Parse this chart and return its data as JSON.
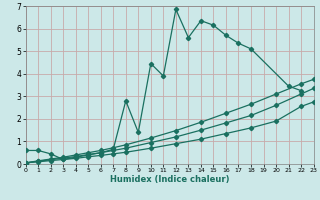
{
  "xlabel": "Humidex (Indice chaleur)",
  "xlim": [
    0,
    23
  ],
  "ylim": [
    0,
    7
  ],
  "bg_color": "#cce8e8",
  "grid_color": "#c8aaaa",
  "line_color": "#1a7060",
  "curve1_x": [
    0,
    1,
    2,
    3,
    4,
    5,
    6,
    7,
    8,
    9,
    10,
    11,
    12,
    13,
    14,
    15,
    16,
    17,
    18,
    21,
    22
  ],
  "curve1_y": [
    0.6,
    0.6,
    0.45,
    0.2,
    0.3,
    0.4,
    0.5,
    0.65,
    2.8,
    1.4,
    4.45,
    3.9,
    6.85,
    5.6,
    6.35,
    6.15,
    5.7,
    5.35,
    5.1,
    3.45,
    3.25
  ],
  "line2_x": [
    0,
    1,
    2,
    3,
    4,
    5,
    6,
    7,
    8,
    10,
    12,
    14,
    16,
    18,
    20,
    22,
    23
  ],
  "line2_y": [
    0.05,
    0.1,
    0.15,
    0.2,
    0.25,
    0.32,
    0.38,
    0.45,
    0.52,
    0.7,
    0.9,
    1.1,
    1.35,
    1.6,
    1.9,
    2.55,
    2.75
  ],
  "line3_x": [
    0,
    1,
    2,
    3,
    4,
    5,
    6,
    7,
    8,
    10,
    12,
    14,
    16,
    18,
    20,
    22,
    23
  ],
  "line3_y": [
    0.05,
    0.12,
    0.19,
    0.26,
    0.33,
    0.42,
    0.5,
    0.6,
    0.7,
    0.95,
    1.2,
    1.5,
    1.82,
    2.15,
    2.6,
    3.1,
    3.35
  ],
  "line4_x": [
    0,
    1,
    2,
    3,
    4,
    5,
    6,
    7,
    8,
    10,
    12,
    14,
    16,
    18,
    20,
    22,
    23
  ],
  "line4_y": [
    0.05,
    0.14,
    0.22,
    0.3,
    0.4,
    0.5,
    0.6,
    0.72,
    0.85,
    1.15,
    1.48,
    1.85,
    2.25,
    2.65,
    3.1,
    3.55,
    3.75
  ],
  "yticks": [
    0,
    1,
    2,
    3,
    4,
    5,
    6,
    7
  ],
  "xticks": [
    0,
    1,
    2,
    3,
    4,
    5,
    6,
    7,
    8,
    9,
    10,
    11,
    12,
    13,
    14,
    15,
    16,
    17,
    18,
    19,
    20,
    21,
    22,
    23
  ]
}
